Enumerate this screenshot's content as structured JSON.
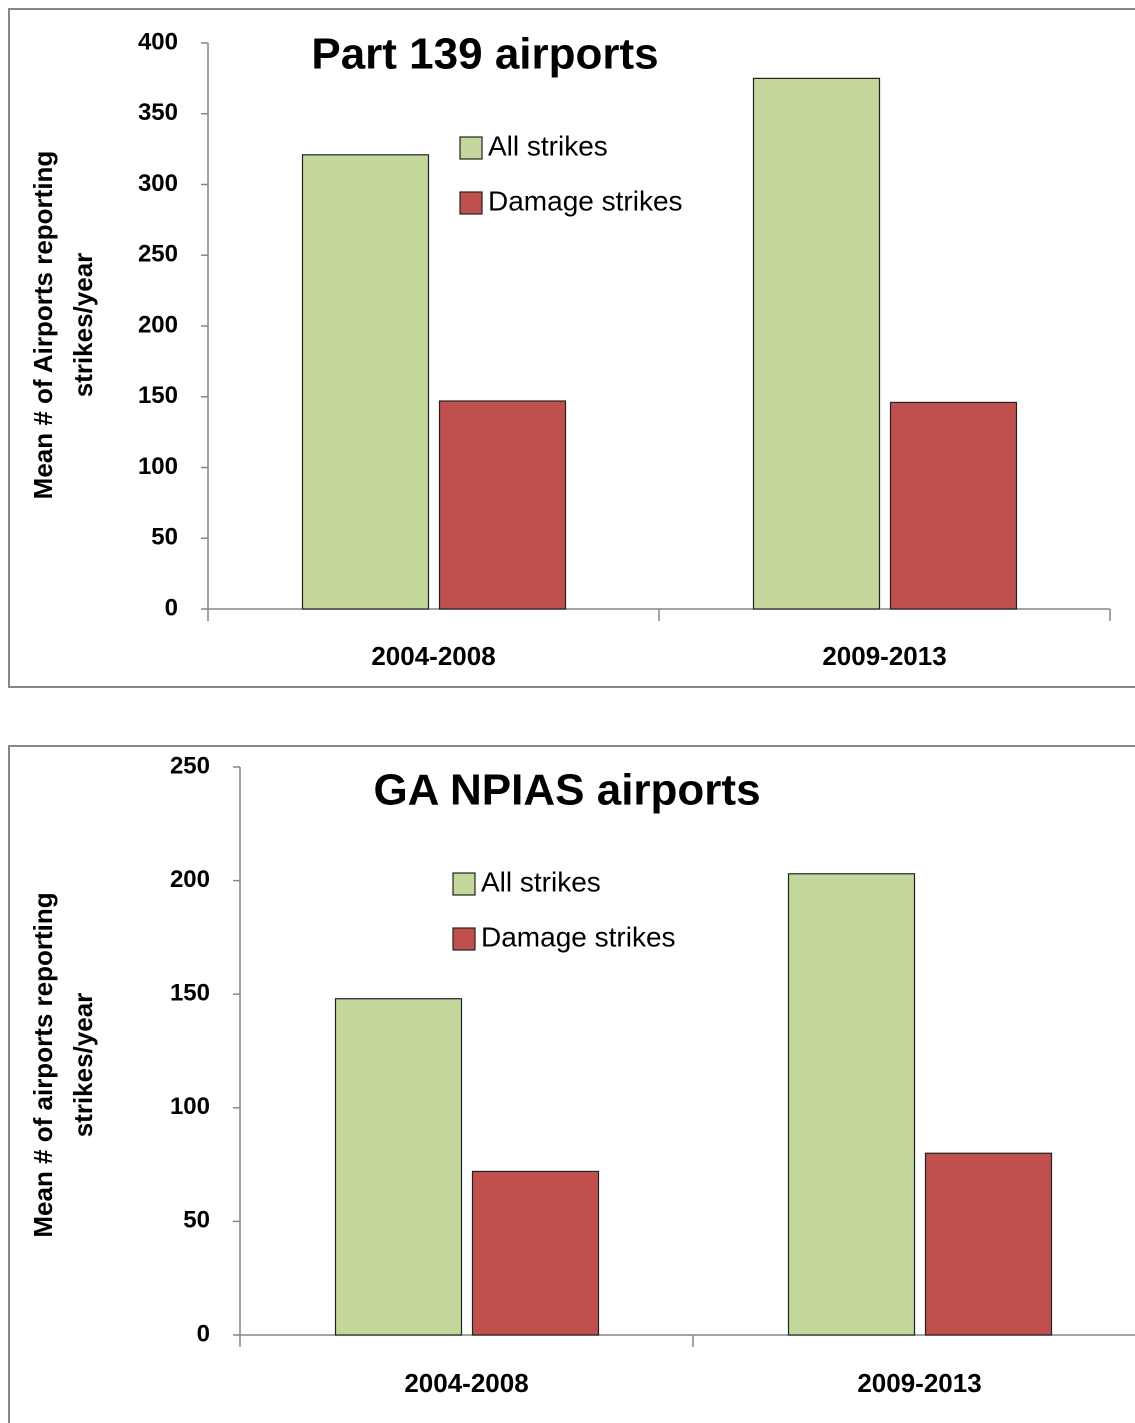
{
  "chart_data": [
    {
      "type": "bar",
      "title": "Part 139 airports",
      "ylabel": [
        "Mean # of Airports reporting",
        "strikes/year"
      ],
      "categories": [
        "2004-2008",
        "2009-2013"
      ],
      "series": [
        {
          "name": "All strikes",
          "color": "#c3d69b",
          "values": [
            321,
            375
          ]
        },
        {
          "name": "Damage strikes",
          "color": "#c0504d",
          "values": [
            147,
            146
          ]
        }
      ],
      "ylim": [
        0,
        400
      ],
      "yticks": [
        0,
        50,
        100,
        150,
        200,
        250,
        300,
        350,
        400
      ]
    },
    {
      "type": "bar",
      "title": "GA NPIAS airports",
      "ylabel": [
        "Mean # of airports reporting",
        "strikes/year"
      ],
      "categories": [
        "2004-2008",
        "2009-2013"
      ],
      "series": [
        {
          "name": "All strikes",
          "color": "#c3d69b",
          "values": [
            148,
            203
          ]
        },
        {
          "name": "Damage strikes",
          "color": "#c0504d",
          "values": [
            72,
            80
          ]
        }
      ],
      "ylim": [
        0,
        250
      ],
      "yticks": [
        0,
        50,
        100,
        150,
        200,
        250
      ]
    }
  ]
}
